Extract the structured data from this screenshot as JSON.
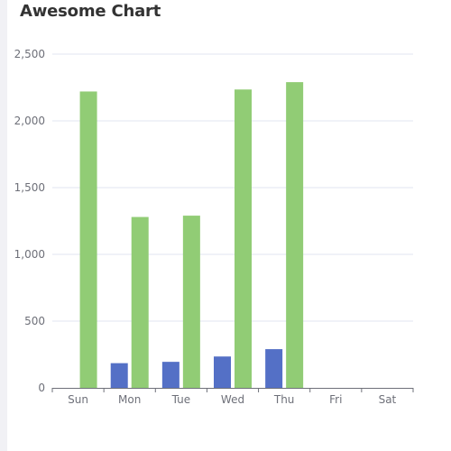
{
  "title": "Awesome Chart",
  "colors": {
    "series_blue": "#5470c6",
    "series_green": "#91cc75",
    "grid": "#e0e6f1",
    "axis": "#6e7079",
    "title": "#333333"
  },
  "chart_data": {
    "type": "bar",
    "title": "Awesome Chart",
    "xlabel": "",
    "ylabel": "",
    "categories": [
      "Sun",
      "Mon",
      "Tue",
      "Wed",
      "Thu",
      "Fri",
      "Sat"
    ],
    "ylim": [
      0,
      2500
    ],
    "yticks": [
      0,
      500,
      1000,
      1500,
      2000,
      2500
    ],
    "ytick_labels": [
      "0",
      "500",
      "1,000",
      "1,500",
      "2,000",
      "2,500"
    ],
    "grid": true,
    "legend": "none",
    "series": [
      {
        "color": "#5470c6",
        "values": [
          0,
          185,
          195,
          235,
          290,
          0,
          0
        ]
      },
      {
        "color": "#91cc75",
        "values": [
          2220,
          1280,
          1290,
          2235,
          2290,
          0,
          0
        ]
      }
    ]
  }
}
